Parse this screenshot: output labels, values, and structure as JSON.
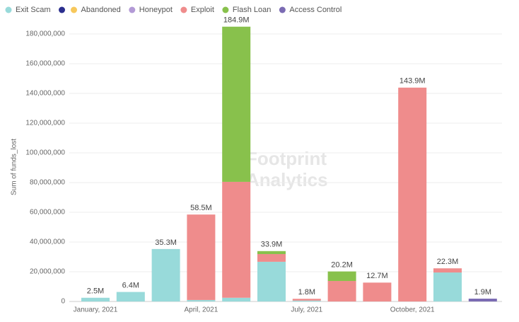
{
  "chart_data": {
    "type": "stacked_bar",
    "y_label": "Sum of funds_lost",
    "watermark": [
      "Footprint",
      "Analytics"
    ],
    "categories": [
      "January, 2021",
      null,
      null,
      "April, 2021",
      null,
      null,
      "July, 2021",
      null,
      null,
      "October, 2021",
      null,
      null
    ],
    "series": [
      {
        "name": "Exit Scam",
        "color": "#98dada",
        "values": [
          2500000,
          6400000,
          35300000,
          1000000,
          2500000,
          26700000,
          600000,
          0,
          0,
          0,
          19500000,
          0
        ]
      },
      {
        "name": null,
        "color": "#2b2f8e",
        "values": [
          0,
          0,
          0,
          0,
          0,
          0,
          0,
          0,
          0,
          0,
          0,
          0
        ]
      },
      {
        "name": "Abandoned",
        "color": "#f7c85c",
        "values": [
          0,
          0,
          0,
          0,
          0,
          0,
          0,
          0,
          0,
          0,
          0,
          0
        ]
      },
      {
        "name": "Honeypot",
        "color": "#b39ad6",
        "values": [
          0,
          0,
          0,
          0,
          0,
          0,
          0,
          0,
          0,
          0,
          0,
          0
        ]
      },
      {
        "name": "Exploit",
        "color": "#ef8c8c",
        "values": [
          0,
          0,
          0,
          57500000,
          78000000,
          5200000,
          1200000,
          13800000,
          12700000,
          143900000,
          2800000,
          0
        ]
      },
      {
        "name": "Flash Loan",
        "color": "#88c14c",
        "values": [
          0,
          0,
          0,
          0,
          104400000,
          2000000,
          0,
          6400000,
          0,
          0,
          0,
          0
        ]
      },
      {
        "name": "Access Control",
        "color": "#7b6bb3",
        "values": [
          0,
          0,
          0,
          0,
          0,
          0,
          0,
          0,
          0,
          0,
          0,
          1900000
        ]
      }
    ],
    "totals": [
      2500000,
      6400000,
      35300000,
      58500000,
      184900000,
      33900000,
      1800000,
      20200000,
      12700000,
      143900000,
      22300000,
      1900000
    ],
    "total_labels": [
      "2.5M",
      "6.4M",
      "35.3M",
      "58.5M",
      "184.9M",
      "33.9M",
      "1.8M",
      "20.2M",
      "12.7M",
      "143.9M",
      "22.3M",
      "1.9M"
    ],
    "ylim": [
      0,
      190000000
    ],
    "yticks": [
      0,
      {
        "value": 20000000,
        "label": "20,000,000"
      },
      {
        "value": 40000000,
        "label": "40,000,000"
      },
      {
        "value": 60000000,
        "label": "60,000,000"
      },
      {
        "value": 80000000,
        "label": "80,000,000"
      },
      {
        "value": 100000000,
        "label": "100,000,000"
      },
      {
        "value": 120000000,
        "label": "120,000,000"
      },
      {
        "value": 140000000,
        "label": "140,000,000"
      },
      {
        "value": 160000000,
        "label": "160,000,000"
      },
      {
        "value": 180000000,
        "label": "180,000,000"
      }
    ],
    "grid": true
  }
}
